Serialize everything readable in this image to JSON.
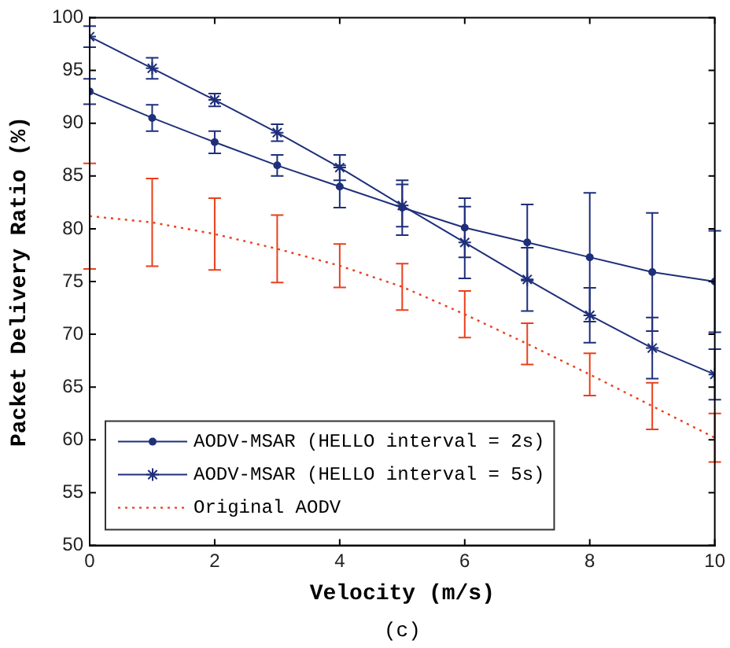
{
  "chart_data": {
    "type": "line",
    "xlabel": "Velocity (m/s)",
    "ylabel": "Packet Delivery Ratio (%)",
    "annotations": [
      "(c)"
    ],
    "x": [
      0,
      1,
      2,
      3,
      4,
      5,
      6,
      7,
      8,
      9,
      10
    ],
    "xlim": [
      0,
      10
    ],
    "xticks": [
      0,
      2,
      4,
      6,
      8,
      10
    ],
    "ylim": [
      50,
      100
    ],
    "yticks": [
      50,
      55,
      60,
      65,
      70,
      75,
      80,
      85,
      90,
      95,
      100
    ],
    "grid": false,
    "legend": "bottom left",
    "series": [
      {
        "name": "AODV-MSAR (HELLO interval = 2s)",
        "color": "#1f2f7a",
        "marker": "circle",
        "line_style": "solid",
        "values": [
          93,
          90.5,
          88.2,
          86,
          84,
          82,
          80.1,
          78.7,
          77.3,
          75.9,
          75
        ],
        "errors": [
          1.2,
          1.25,
          1.05,
          1,
          2,
          2.6,
          2.8,
          3.6,
          6.1,
          5.6,
          4.8
        ]
      },
      {
        "name": "AODV-MSAR (HELLO interval = 5s)",
        "color": "#1f2f7a",
        "marker": "cross",
        "line_style": "solid",
        "values": [
          98.2,
          95.2,
          92.2,
          89.1,
          85.8,
          82.2,
          78.7,
          75.2,
          71.8,
          68.7,
          66.2
        ],
        "errors": [
          1,
          1,
          0.6,
          0.8,
          1.2,
          2,
          3.4,
          3,
          2.6,
          2.9,
          2.4
        ]
      },
      {
        "name": "Original AODV",
        "color": "#e8401c",
        "marker": "none",
        "line_style": "dotted",
        "values": [
          81.2,
          80.6,
          79.5,
          78.1,
          76.5,
          74.5,
          71.9,
          69.1,
          66.2,
          63.2,
          60.2
        ],
        "errors": [
          5,
          4.15,
          3.4,
          3.2,
          2.05,
          2.2,
          2.2,
          1.95,
          2,
          2.2,
          2.3
        ]
      }
    ]
  }
}
